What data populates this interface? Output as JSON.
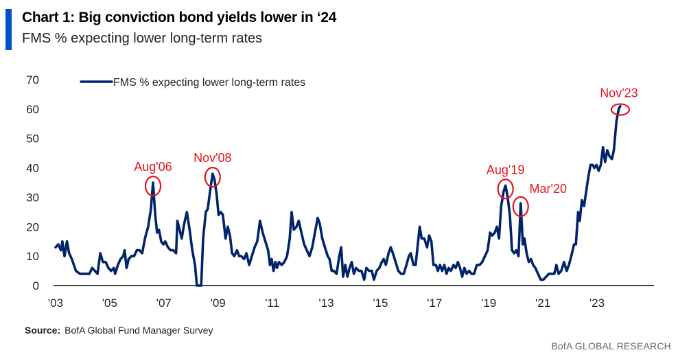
{
  "header": {
    "title": "Chart 1: Big conviction bond yields lower in ‘24",
    "subtitle": "FMS % expecting lower long-term rates",
    "accent_color": "#0052CC"
  },
  "footer": {
    "source_label": "Source:",
    "source_text": "BofA Global Fund Manager Survey",
    "brand": "BofA GLOBAL RESEARCH"
  },
  "chart_data": {
    "type": "line",
    "title": "Chart 1: Big conviction bond yields lower in ‘24",
    "subtitle": "FMS % expecting lower long-term rates",
    "xlabel": "",
    "ylabel": "",
    "ylim": [
      0,
      70
    ],
    "xlim": [
      2003.0,
      2025.0
    ],
    "yticks": [
      0,
      10,
      20,
      30,
      40,
      50,
      60,
      70
    ],
    "xticks": [
      {
        "value": 2003,
        "label": "'03"
      },
      {
        "value": 2005,
        "label": "'05"
      },
      {
        "value": 2007,
        "label": "'07"
      },
      {
        "value": 2009,
        "label": "'09"
      },
      {
        "value": 2011,
        "label": "'11"
      },
      {
        "value": 2013,
        "label": "'13"
      },
      {
        "value": 2015,
        "label": "'15"
      },
      {
        "value": 2017,
        "label": "'17"
      },
      {
        "value": 2019,
        "label": "'19"
      },
      {
        "value": 2021,
        "label": "'21"
      },
      {
        "value": 2023,
        "label": "'23"
      }
    ],
    "grid": false,
    "legend": {
      "position": "top-left",
      "entries": [
        "FMS % expecting lower long-term rates"
      ]
    },
    "series": [
      {
        "name": "FMS % expecting lower long-term rates",
        "color": "#002469",
        "points": [
          [
            2003.0,
            13
          ],
          [
            2003.1,
            14
          ],
          [
            2003.2,
            12
          ],
          [
            2003.25,
            15
          ],
          [
            2003.33,
            10
          ],
          [
            2003.42,
            15
          ],
          [
            2003.5,
            11
          ],
          [
            2003.6,
            9
          ],
          [
            2003.75,
            5
          ],
          [
            2003.9,
            4
          ],
          [
            2004.1,
            4
          ],
          [
            2004.25,
            4
          ],
          [
            2004.35,
            6
          ],
          [
            2004.45,
            5
          ],
          [
            2004.55,
            4
          ],
          [
            2004.65,
            11
          ],
          [
            2004.75,
            8
          ],
          [
            2004.85,
            8
          ],
          [
            2004.95,
            6
          ],
          [
            2005.05,
            5
          ],
          [
            2005.15,
            6
          ],
          [
            2005.2,
            4
          ],
          [
            2005.3,
            7
          ],
          [
            2005.4,
            9
          ],
          [
            2005.5,
            10
          ],
          [
            2005.55,
            12
          ],
          [
            2005.62,
            6
          ],
          [
            2005.7,
            9
          ],
          [
            2005.8,
            10
          ],
          [
            2005.9,
            10
          ],
          [
            2006.0,
            12
          ],
          [
            2006.1,
            12
          ],
          [
            2006.2,
            11
          ],
          [
            2006.3,
            16
          ],
          [
            2006.42,
            20
          ],
          [
            2006.52,
            26
          ],
          [
            2006.6,
            35
          ],
          [
            2006.68,
            24
          ],
          [
            2006.75,
            18
          ],
          [
            2006.82,
            19
          ],
          [
            2006.9,
            15
          ],
          [
            2006.98,
            14
          ],
          [
            2007.05,
            15
          ],
          [
            2007.15,
            13
          ],
          [
            2007.25,
            12
          ],
          [
            2007.35,
            12
          ],
          [
            2007.45,
            11
          ],
          [
            2007.5,
            22
          ],
          [
            2007.58,
            19
          ],
          [
            2007.66,
            16
          ],
          [
            2007.75,
            21
          ],
          [
            2007.85,
            25
          ],
          [
            2007.95,
            19
          ],
          [
            2008.05,
            12
          ],
          [
            2008.15,
            7
          ],
          [
            2008.22,
            0
          ],
          [
            2008.3,
            0
          ],
          [
            2008.38,
            0
          ],
          [
            2008.45,
            16
          ],
          [
            2008.55,
            25
          ],
          [
            2008.62,
            26
          ],
          [
            2008.72,
            33
          ],
          [
            2008.8,
            38
          ],
          [
            2008.87,
            36
          ],
          [
            2008.95,
            31
          ],
          [
            2009.02,
            24
          ],
          [
            2009.1,
            25
          ],
          [
            2009.18,
            24
          ],
          [
            2009.28,
            16
          ],
          [
            2009.36,
            20
          ],
          [
            2009.44,
            17
          ],
          [
            2009.52,
            11
          ],
          [
            2009.6,
            10
          ],
          [
            2009.7,
            12
          ],
          [
            2009.78,
            10
          ],
          [
            2009.86,
            10
          ],
          [
            2009.96,
            9
          ],
          [
            2010.05,
            11
          ],
          [
            2010.15,
            7
          ],
          [
            2010.25,
            10
          ],
          [
            2010.35,
            13
          ],
          [
            2010.45,
            15
          ],
          [
            2010.55,
            22
          ],
          [
            2010.65,
            18
          ],
          [
            2010.75,
            15
          ],
          [
            2010.85,
            12
          ],
          [
            2010.92,
            7
          ],
          [
            2010.98,
            9
          ],
          [
            2011.05,
            5
          ],
          [
            2011.12,
            8
          ],
          [
            2011.18,
            6
          ],
          [
            2011.25,
            8
          ],
          [
            2011.35,
            7
          ],
          [
            2011.45,
            8
          ],
          [
            2011.55,
            10
          ],
          [
            2011.65,
            16
          ],
          [
            2011.72,
            25
          ],
          [
            2011.8,
            19
          ],
          [
            2011.9,
            20
          ],
          [
            2011.98,
            22
          ],
          [
            2012.08,
            18
          ],
          [
            2012.18,
            14
          ],
          [
            2012.28,
            12
          ],
          [
            2012.38,
            10
          ],
          [
            2012.48,
            13
          ],
          [
            2012.58,
            18
          ],
          [
            2012.68,
            23
          ],
          [
            2012.76,
            21
          ],
          [
            2012.85,
            16
          ],
          [
            2012.95,
            13
          ],
          [
            2013.05,
            10
          ],
          [
            2013.12,
            9
          ],
          [
            2013.2,
            5
          ],
          [
            2013.28,
            5
          ],
          [
            2013.38,
            4
          ],
          [
            2013.48,
            10
          ],
          [
            2013.55,
            13
          ],
          [
            2013.62,
            3
          ],
          [
            2013.7,
            7
          ],
          [
            2013.78,
            3
          ],
          [
            2013.86,
            6
          ],
          [
            2013.94,
            8
          ],
          [
            2014.02,
            4
          ],
          [
            2014.1,
            6
          ],
          [
            2014.2,
            5
          ],
          [
            2014.3,
            5
          ],
          [
            2014.4,
            2
          ],
          [
            2014.48,
            6
          ],
          [
            2014.58,
            5
          ],
          [
            2014.68,
            5
          ],
          [
            2014.76,
            2
          ],
          [
            2014.86,
            5
          ],
          [
            2014.96,
            6
          ],
          [
            2015.05,
            8
          ],
          [
            2015.12,
            9
          ],
          [
            2015.2,
            7
          ],
          [
            2015.3,
            11
          ],
          [
            2015.38,
            13
          ],
          [
            2015.46,
            11
          ],
          [
            2015.56,
            8
          ],
          [
            2015.66,
            5
          ],
          [
            2015.76,
            4
          ],
          [
            2015.86,
            4
          ],
          [
            2015.96,
            7
          ],
          [
            2016.05,
            10
          ],
          [
            2016.12,
            11
          ],
          [
            2016.22,
            7
          ],
          [
            2016.3,
            7
          ],
          [
            2016.38,
            14
          ],
          [
            2016.45,
            20
          ],
          [
            2016.52,
            16
          ],
          [
            2016.62,
            16
          ],
          [
            2016.72,
            13
          ],
          [
            2016.8,
            17
          ],
          [
            2016.88,
            15
          ],
          [
            2016.96,
            7
          ],
          [
            2017.05,
            7
          ],
          [
            2017.12,
            5
          ],
          [
            2017.2,
            7
          ],
          [
            2017.28,
            5
          ],
          [
            2017.36,
            7
          ],
          [
            2017.44,
            4
          ],
          [
            2017.52,
            6
          ],
          [
            2017.6,
            5
          ],
          [
            2017.7,
            7
          ],
          [
            2017.78,
            6
          ],
          [
            2017.86,
            8
          ],
          [
            2017.94,
            6
          ],
          [
            2018.02,
            3
          ],
          [
            2018.1,
            6
          ],
          [
            2018.18,
            4
          ],
          [
            2018.28,
            5
          ],
          [
            2018.36,
            4
          ],
          [
            2018.46,
            4
          ],
          [
            2018.56,
            7
          ],
          [
            2018.66,
            7
          ],
          [
            2018.76,
            8
          ],
          [
            2018.86,
            10
          ],
          [
            2018.96,
            12
          ],
          [
            2019.05,
            18
          ],
          [
            2019.13,
            17
          ],
          [
            2019.22,
            18
          ],
          [
            2019.3,
            20
          ],
          [
            2019.38,
            16
          ],
          [
            2019.46,
            27
          ],
          [
            2019.55,
            32
          ],
          [
            2019.62,
            34
          ],
          [
            2019.7,
            30
          ],
          [
            2019.78,
            24
          ],
          [
            2019.86,
            12
          ],
          [
            2019.94,
            11
          ],
          [
            2020.02,
            12
          ],
          [
            2020.1,
            10
          ],
          [
            2020.18,
            28
          ],
          [
            2020.26,
            14
          ],
          [
            2020.32,
            16
          ],
          [
            2020.4,
            11
          ],
          [
            2020.48,
            8
          ],
          [
            2020.56,
            9
          ],
          [
            2020.64,
            7
          ],
          [
            2020.72,
            6
          ],
          [
            2020.82,
            4
          ],
          [
            2020.92,
            2
          ],
          [
            2021.02,
            2
          ],
          [
            2021.12,
            3
          ],
          [
            2021.22,
            4
          ],
          [
            2021.32,
            4
          ],
          [
            2021.42,
            4
          ],
          [
            2021.5,
            7
          ],
          [
            2021.58,
            4
          ],
          [
            2021.68,
            5
          ],
          [
            2021.78,
            8
          ],
          [
            2021.88,
            5
          ],
          [
            2021.96,
            7
          ],
          [
            2022.05,
            10
          ],
          [
            2022.15,
            14
          ],
          [
            2022.22,
            14
          ],
          [
            2022.3,
            25
          ],
          [
            2022.36,
            22
          ],
          [
            2022.44,
            29
          ],
          [
            2022.52,
            27
          ],
          [
            2022.6,
            32
          ],
          [
            2022.68,
            37
          ],
          [
            2022.76,
            41
          ],
          [
            2022.84,
            41
          ],
          [
            2022.9,
            40
          ],
          [
            2022.98,
            41
          ],
          [
            2023.06,
            39
          ],
          [
            2023.14,
            41
          ],
          [
            2023.22,
            47
          ],
          [
            2023.3,
            42
          ],
          [
            2023.38,
            46
          ],
          [
            2023.46,
            44
          ],
          [
            2023.55,
            43
          ],
          [
            2023.62,
            46
          ],
          [
            2023.72,
            56
          ],
          [
            2023.8,
            60
          ],
          [
            2023.86,
            61
          ]
        ]
      }
    ],
    "annotations": [
      {
        "label": "Aug'06",
        "x": 2006.6,
        "y": 35
      },
      {
        "label": "Nov'08",
        "x": 2008.8,
        "y": 38
      },
      {
        "label": "Aug'19",
        "x": 2019.62,
        "y": 34
      },
      {
        "label": "Mar'20",
        "x": 2020.18,
        "y": 28
      },
      {
        "label": "Nov'23",
        "x": 2023.86,
        "y": 61
      }
    ],
    "annotation_color": "#E8141C"
  }
}
